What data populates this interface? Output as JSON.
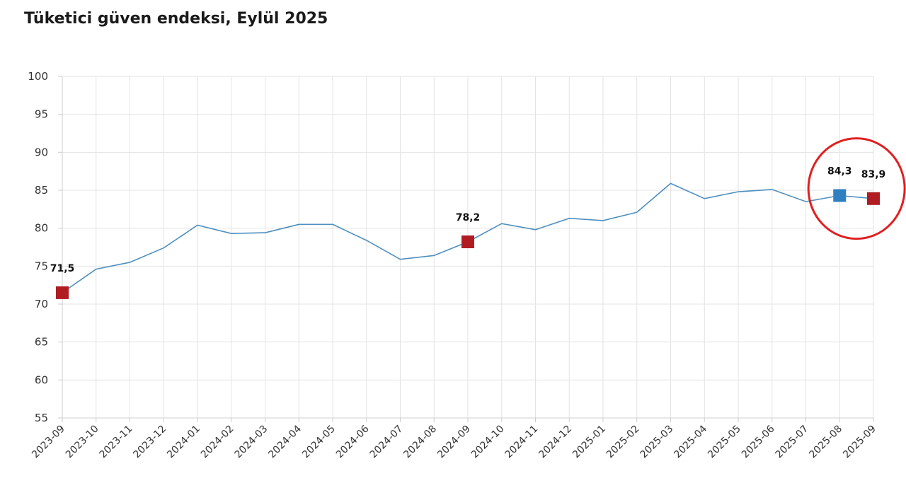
{
  "chart_data": {
    "type": "line",
    "title": "Tüketici güven endeksi, Eylül 2025",
    "xlabel": "",
    "ylabel": "",
    "ylim": [
      55,
      100
    ],
    "yticks": [
      "100",
      "95",
      "90",
      "85",
      "80",
      "75",
      "70",
      "65",
      "60",
      "55"
    ],
    "grid": true,
    "legend": "none",
    "categories": [
      "2023-09",
      "2023-10",
      "2023-11",
      "2023-12",
      "2024-01",
      "2024-02",
      "2024-03",
      "2024-04",
      "2024-05",
      "2024-06",
      "2024-07",
      "2024-08",
      "2024-09",
      "2024-10",
      "2024-11",
      "2024-12",
      "2025-01",
      "2025-02",
      "2025-03",
      "2025-04",
      "2025-05",
      "2025-06",
      "2025-07",
      "2025-08",
      "2025-09"
    ],
    "series": [
      {
        "values": [
          71.5,
          74.6,
          75.5,
          77.4,
          80.4,
          79.3,
          79.4,
          80.5,
          80.5,
          78.4,
          75.9,
          76.4,
          78.2,
          80.6,
          79.8,
          81.3,
          81.0,
          82.1,
          85.9,
          83.9,
          84.8,
          85.1,
          83.5,
          84.3,
          83.9
        ],
        "color": "#4f8fc0"
      }
    ],
    "highlights": [
      {
        "category": "2023-09",
        "value": 71.5,
        "label": "71,5",
        "color": "#b01c22"
      },
      {
        "category": "2024-09",
        "value": 78.2,
        "label": "78,2",
        "color": "#b01c22"
      },
      {
        "category": "2025-08",
        "value": 84.3,
        "label": "84,3",
        "color": "#2f7fc1"
      },
      {
        "category": "2025-09",
        "value": 83.9,
        "label": "83,9",
        "color": "#b01c22"
      }
    ],
    "annotation_circle": {
      "around": [
        "2025-08",
        "2025-09"
      ],
      "color": "#e02020"
    }
  }
}
